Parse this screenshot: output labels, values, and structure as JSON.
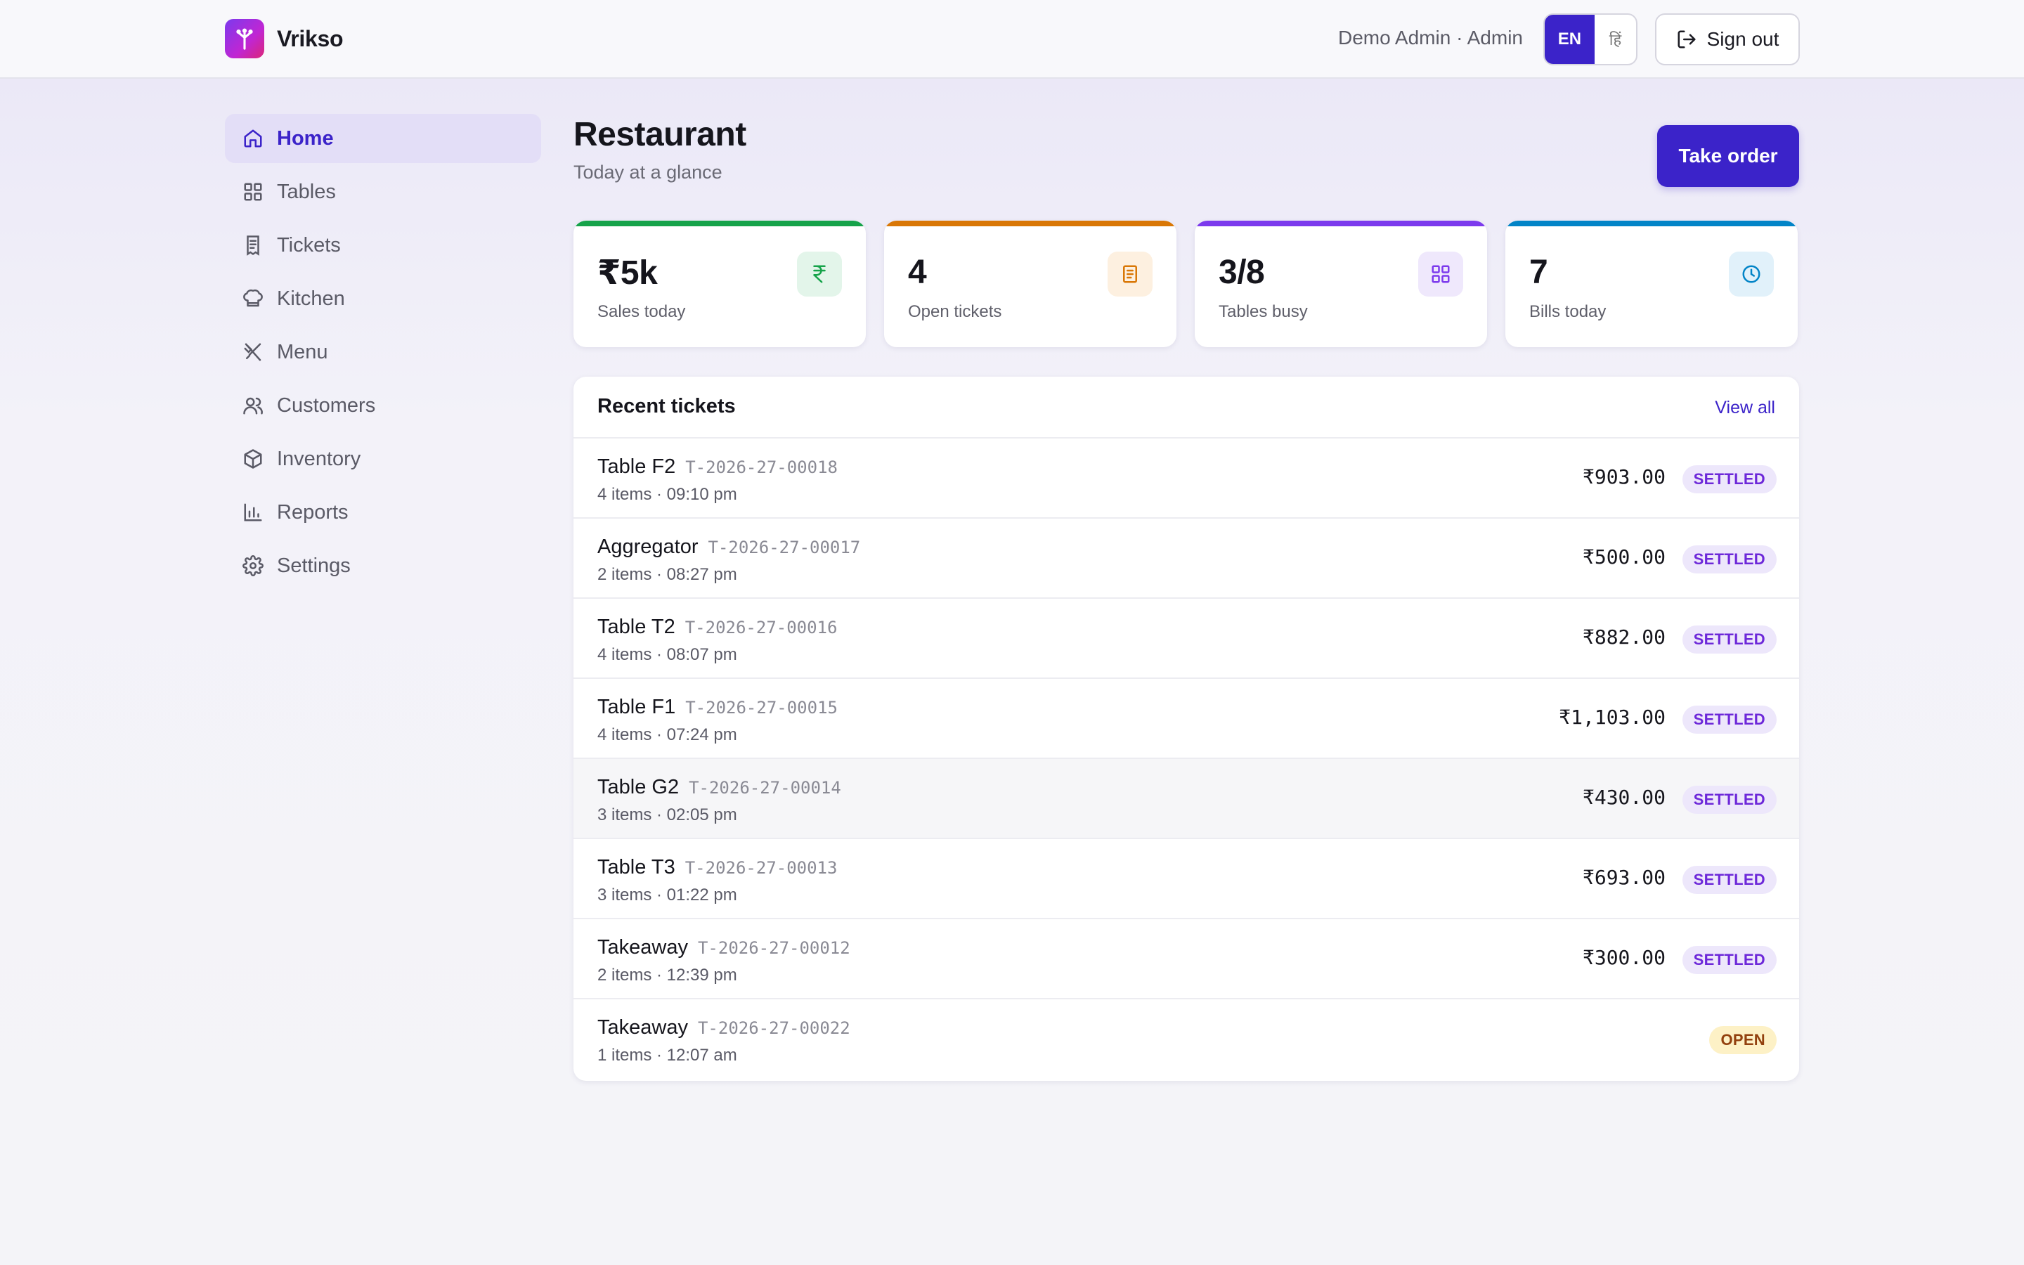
{
  "header": {
    "brand": "Vrikso",
    "user": "Demo Admin · Admin",
    "lang_en": "EN",
    "lang_hi": "हिं",
    "signout": "Sign out"
  },
  "sidebar": {
    "items": [
      {
        "label": "Home",
        "icon": "home-icon",
        "active": true
      },
      {
        "label": "Tables",
        "icon": "grid-icon"
      },
      {
        "label": "Tickets",
        "icon": "receipt-icon"
      },
      {
        "label": "Kitchen",
        "icon": "chef-hat-icon"
      },
      {
        "label": "Menu",
        "icon": "utensils-icon"
      },
      {
        "label": "Customers",
        "icon": "users-icon"
      },
      {
        "label": "Inventory",
        "icon": "package-icon"
      },
      {
        "label": "Reports",
        "icon": "bar-chart-icon"
      },
      {
        "label": "Settings",
        "icon": "gear-icon"
      }
    ]
  },
  "main": {
    "title": "Restaurant",
    "subtitle": "Today at a glance",
    "take_order": "Take order"
  },
  "stats": [
    {
      "value": "₹5k",
      "label": "Sales today",
      "color": "#16a34a",
      "icon": "rupee-icon"
    },
    {
      "value": "4",
      "label": "Open tickets",
      "color": "#d97706",
      "icon": "receipt-icon"
    },
    {
      "value": "3/8",
      "label": "Tables busy",
      "color": "#7c3aed",
      "icon": "grid-icon"
    },
    {
      "value": "7",
      "label": "Bills today",
      "color": "#0284c7",
      "icon": "clock-icon"
    }
  ],
  "recent": {
    "title": "Recent tickets",
    "view_all": "View all",
    "rows": [
      {
        "name": "Table F2",
        "code": "T-2026-27-00018",
        "meta": "4 items · 09:10 pm",
        "amount": "₹903.00",
        "status": "SETTLED"
      },
      {
        "name": "Aggregator",
        "code": "T-2026-27-00017",
        "meta": "2 items · 08:27 pm",
        "amount": "₹500.00",
        "status": "SETTLED"
      },
      {
        "name": "Table T2",
        "code": "T-2026-27-00016",
        "meta": "4 items · 08:07 pm",
        "amount": "₹882.00",
        "status": "SETTLED"
      },
      {
        "name": "Table F1",
        "code": "T-2026-27-00015",
        "meta": "4 items · 07:24 pm",
        "amount": "₹1,103.00",
        "status": "SETTLED"
      },
      {
        "name": "Table G2",
        "code": "T-2026-27-00014",
        "meta": "3 items · 02:05 pm",
        "amount": "₹430.00",
        "status": "SETTLED"
      },
      {
        "name": "Table T3",
        "code": "T-2026-27-00013",
        "meta": "3 items · 01:22 pm",
        "amount": "₹693.00",
        "status": "SETTLED"
      },
      {
        "name": "Takeaway",
        "code": "T-2026-27-00012",
        "meta": "2 items · 12:39 pm",
        "amount": "₹300.00",
        "status": "SETTLED"
      },
      {
        "name": "Takeaway",
        "code": "T-2026-27-00022",
        "meta": "1 items · 12:07 am",
        "amount": "",
        "status": "OPEN"
      }
    ]
  }
}
